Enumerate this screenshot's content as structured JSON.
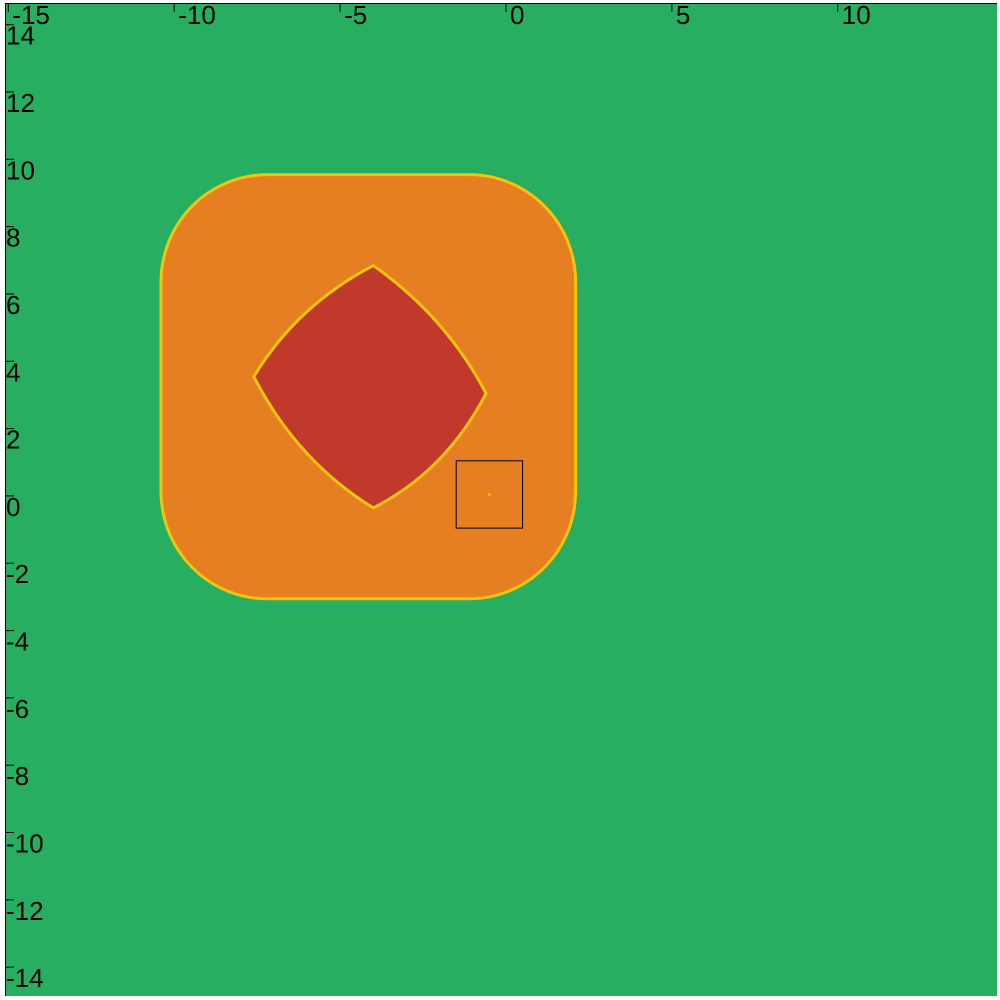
{
  "chart_data": {
    "type": "heatmap",
    "title": "",
    "xlabel": "",
    "ylabel": "",
    "xlim": [
      -15.1,
      14.8
    ],
    "ylim": [
      -14.5,
      15.0
    ],
    "x_ticks": [
      -15,
      -10,
      -5,
      0,
      5,
      10
    ],
    "x_tick_labels": [
      "-15",
      "-10",
      "-5",
      "0",
      "5",
      "10"
    ],
    "y_ticks": [
      14,
      12,
      10,
      8,
      6,
      4,
      2,
      0,
      -2,
      -4,
      -6,
      -8,
      -10,
      -12,
      -14
    ],
    "y_tick_labels": [
      "14",
      "12",
      "10",
      "8",
      "6",
      "4",
      "2",
      "0",
      "-2",
      "-4",
      "-6",
      "-8",
      "-10",
      "-12",
      "-14"
    ],
    "grid": false,
    "legend": "none",
    "colors": {
      "background": "#27ae60",
      "outer_region": "#e67e22",
      "inner_region": "#c0392b",
      "boundary": "#f1c40f",
      "marker_box": "#000000"
    },
    "regions": [
      {
        "color_key": "outer_region",
        "shape": "rounded-square",
        "x_range": [
          -10.4,
          2.1
        ],
        "y_range": [
          -2.7,
          9.9
        ],
        "corner_radius": 3.2
      },
      {
        "color_key": "inner_region",
        "shape": "concave-diamond",
        "center": [
          -4.0,
          3.9
        ],
        "vertices": [
          [
            -4.0,
            7.2
          ],
          [
            -0.6,
            3.4
          ],
          [
            -4.0,
            0.0
          ],
          [
            -7.6,
            3.9
          ]
        ]
      }
    ],
    "marker_box": {
      "x_range": [
        -1.5,
        0.5
      ],
      "y_range": [
        -0.6,
        1.4
      ]
    },
    "marker_point": [
      -0.5,
      0.4
    ]
  }
}
